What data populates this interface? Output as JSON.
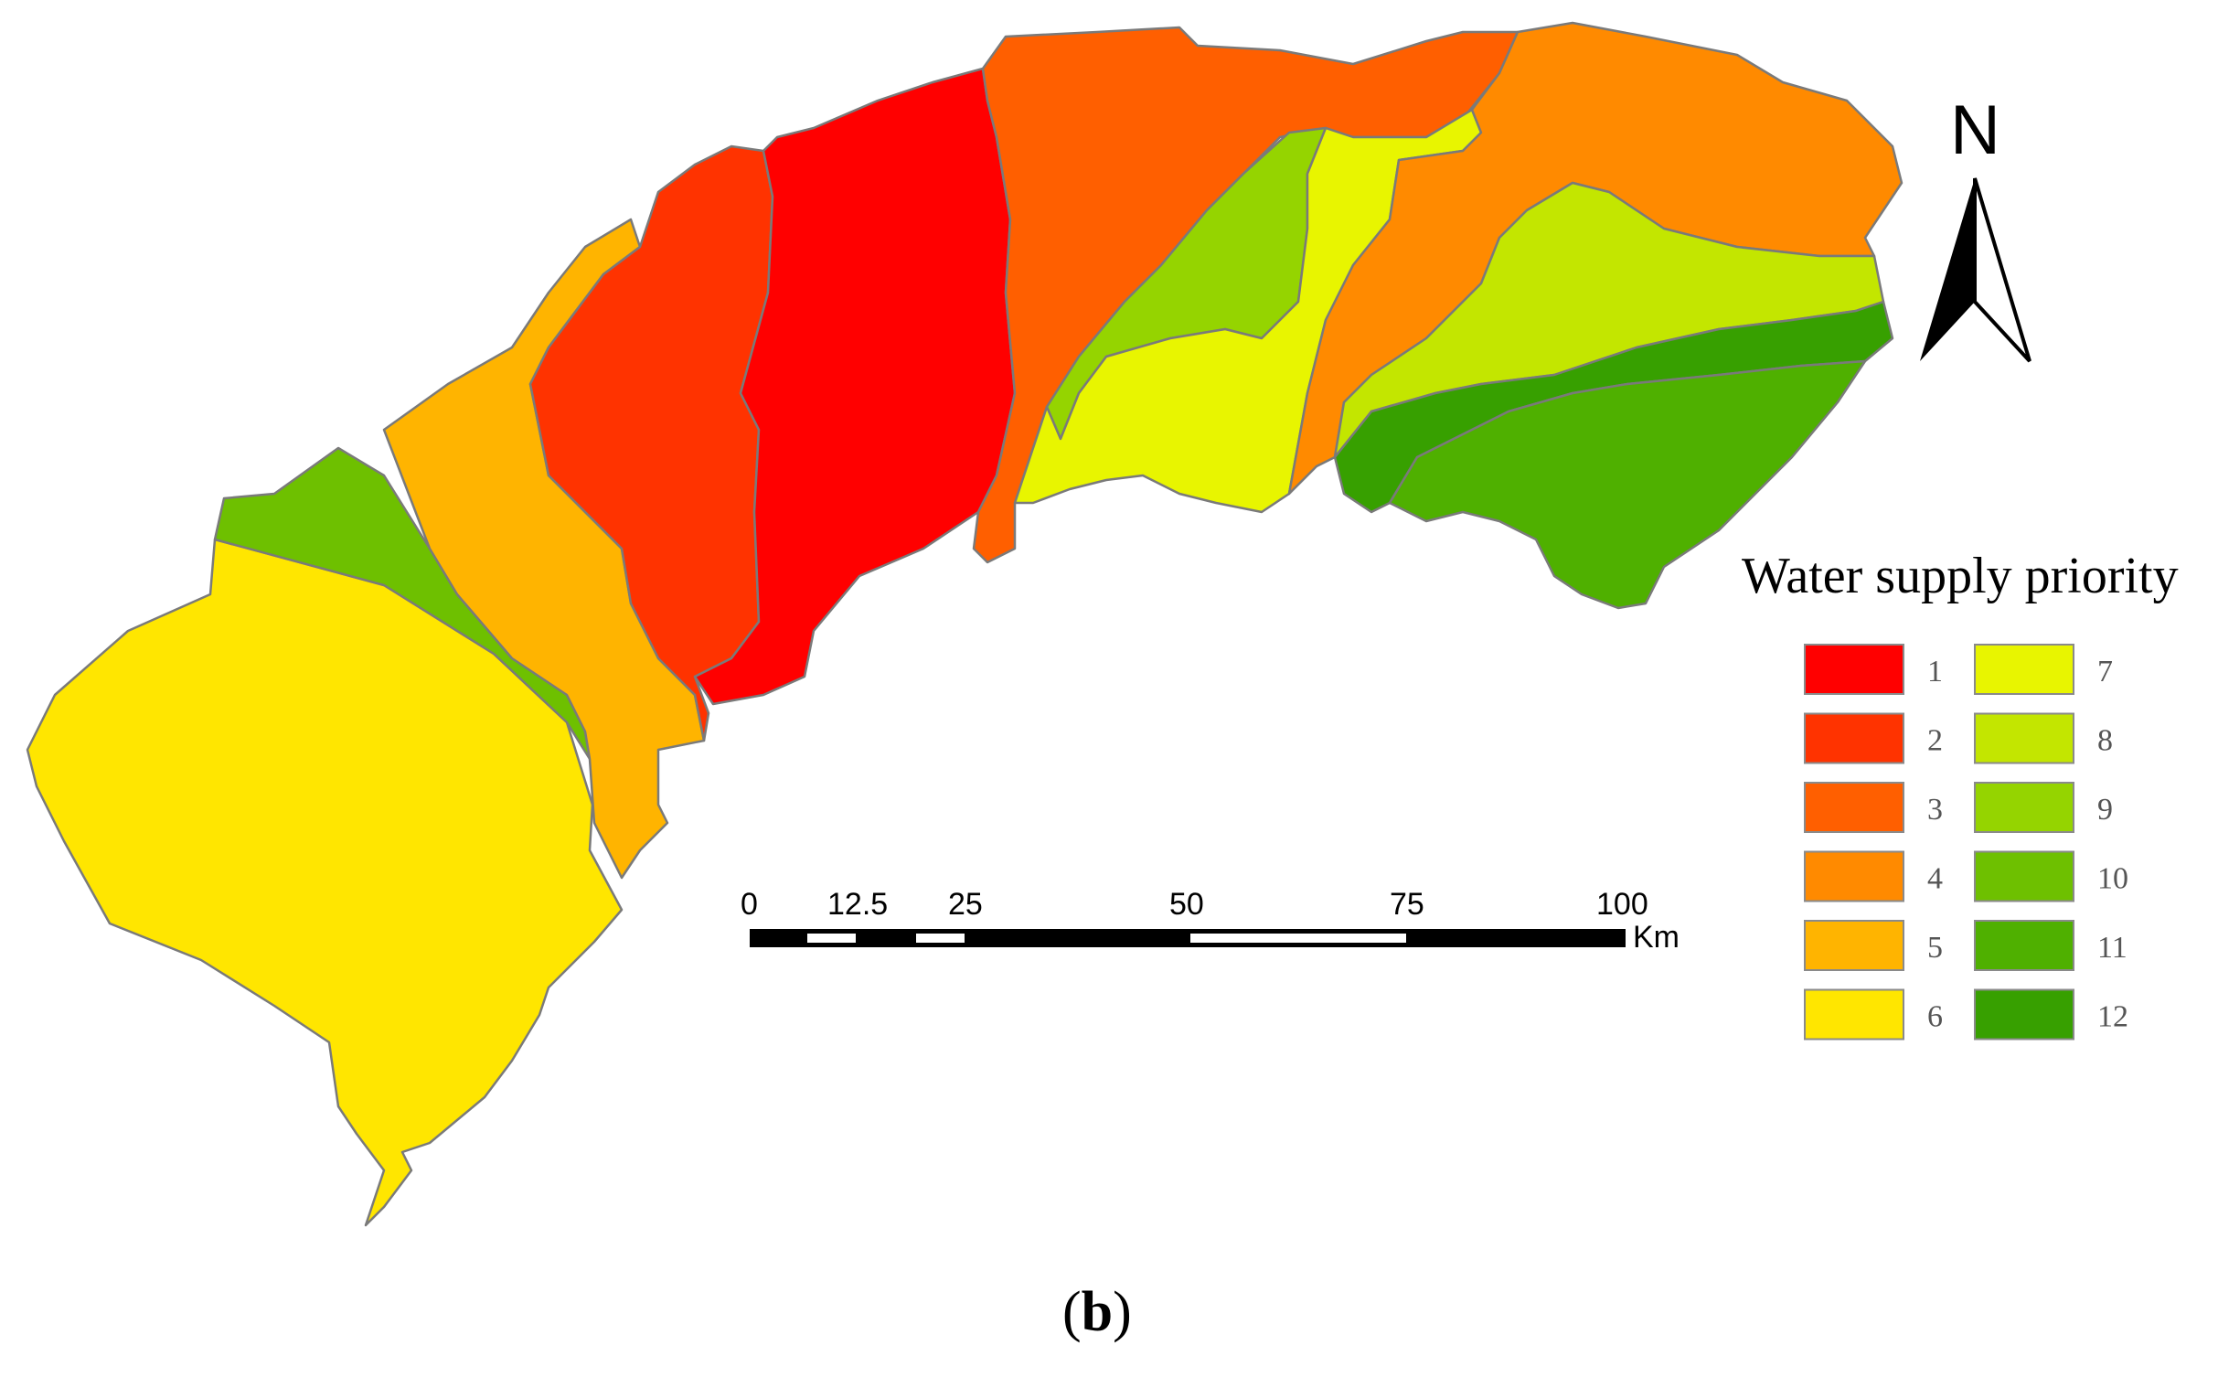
{
  "legend": {
    "title": "Water supply priority",
    "items": [
      {
        "label": "1",
        "color": "#ff0000"
      },
      {
        "label": "2",
        "color": "#ff3300"
      },
      {
        "label": "3",
        "color": "#ff5f00"
      },
      {
        "label": "4",
        "color": "#ff8a00"
      },
      {
        "label": "5",
        "color": "#ffb400"
      },
      {
        "label": "6",
        "color": "#ffe600"
      },
      {
        "label": "7",
        "color": "#e8f500"
      },
      {
        "label": "8",
        "color": "#c3e600"
      },
      {
        "label": "9",
        "color": "#95d400"
      },
      {
        "label": "10",
        "color": "#6ec000"
      },
      {
        "label": "11",
        "color": "#4fb000"
      },
      {
        "label": "12",
        "color": "#37a000"
      }
    ]
  },
  "scale_bar": {
    "ticks": [
      "0",
      "12.5",
      "25",
      "50",
      "75",
      "100"
    ],
    "unit": "Km"
  },
  "north_arrow": {
    "letter": "N",
    "icon": "north-arrow-icon"
  },
  "caption": {
    "open": "(",
    "letter": "b",
    "close": ")"
  }
}
